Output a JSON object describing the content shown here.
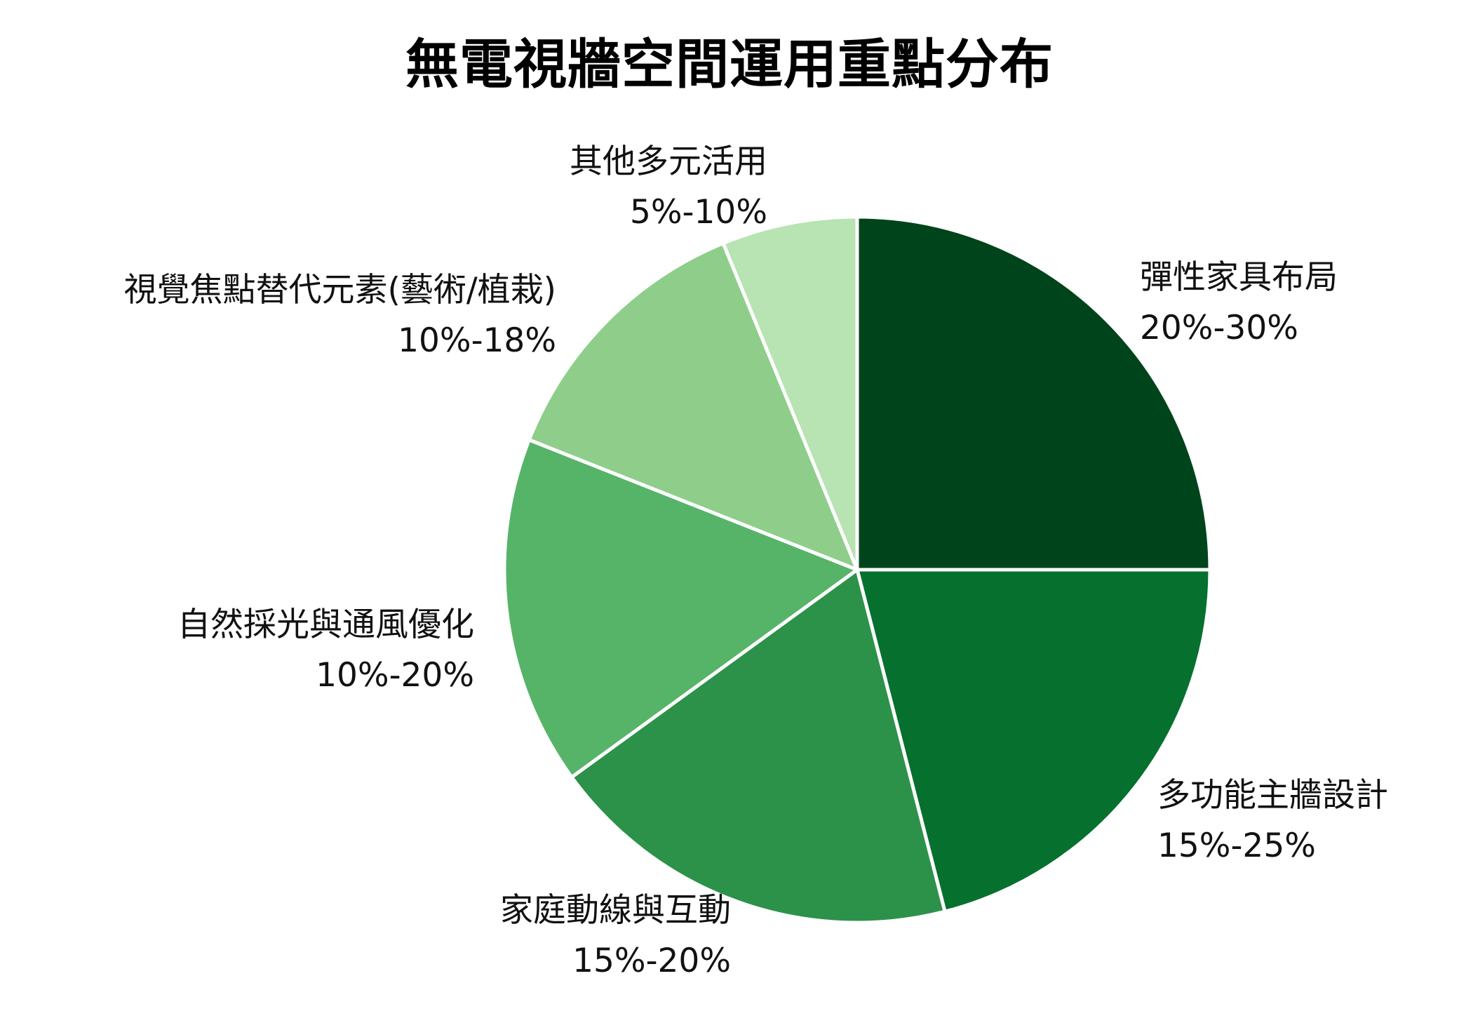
{
  "chart_data": {
    "type": "pie",
    "title": "無電視牆空間運用重點分布",
    "slices": [
      {
        "label": "彈性家具布局",
        "range_label": "20%-30%",
        "value": 25.0,
        "color": "#00441b"
      },
      {
        "label": "多功能主牆設計",
        "range_label": "15%-25%",
        "value": 21.0,
        "color": "#06702e"
      },
      {
        "label": "家庭動線與互動",
        "range_label": "15%-20%",
        "value": 19.0,
        "color": "#2c924a"
      },
      {
        "label": "自然採光與通風優化",
        "range_label": "10%-20%",
        "value": 16.0,
        "color": "#56b468"
      },
      {
        "label": "視覺焦點替代元素(藝術/植栽)",
        "range_label": "10%-18%",
        "value": 12.8,
        "color": "#8ece8a"
      },
      {
        "label": "其他多元活用",
        "range_label": "5%-10%",
        "value": 6.2,
        "color": "#b8e3b2"
      }
    ],
    "start_angle": "12 o'clock",
    "direction": "clockwise",
    "legend": "none"
  }
}
